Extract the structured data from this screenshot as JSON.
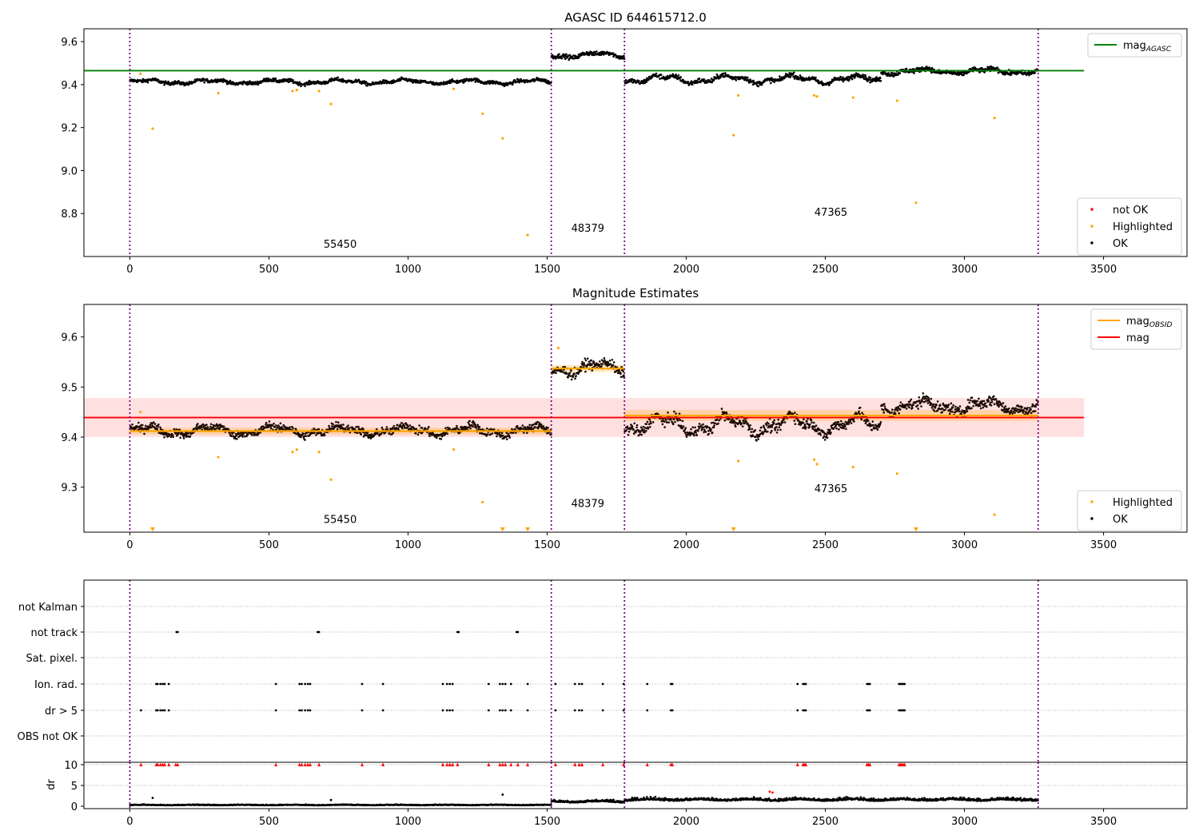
{
  "chart_data": [
    {
      "type": "scatter",
      "title": "AGASC ID 644615712.0",
      "xlim": [
        -165,
        3800
      ],
      "ylim": [
        8.6,
        9.66
      ],
      "xticks": [
        0,
        500,
        1000,
        1500,
        2000,
        2500,
        3000,
        3500
      ],
      "xtick_labels": [
        "0",
        "500",
        "1000",
        "1500",
        "2000",
        "2500",
        "3000",
        "3500"
      ],
      "yticks": [
        8.8,
        9.0,
        9.2,
        9.4,
        9.6
      ],
      "ytick_labels": [
        "8.8",
        "9.0",
        "9.2",
        "9.4",
        "9.6"
      ],
      "obs_boundaries": [
        0,
        1515,
        1778,
        3265
      ],
      "obs_labels": [
        {
          "text": "55450",
          "x": 756,
          "y": 8.64
        },
        {
          "text": "48379",
          "x": 1646,
          "y": 8.715
        },
        {
          "text": "47365",
          "x": 2520,
          "y": 8.79
        }
      ],
      "reference_line": {
        "name": "mag_AGASC",
        "y": 9.465,
        "x_range": [
          -165,
          3430
        ],
        "color": "#008000"
      },
      "segments": [
        {
          "x0": 0,
          "x1": 1515,
          "mean": 9.413,
          "amp": 0.008,
          "noise": 0.008
        },
        {
          "x0": 1515,
          "x1": 1778,
          "mean": 9.538,
          "amp": 0.01,
          "noise": 0.01
        },
        {
          "x0": 1778,
          "x1": 2700,
          "mean": 9.425,
          "amp": 0.015,
          "noise": 0.011
        },
        {
          "x0": 2700,
          "x1": 3265,
          "mean": 9.462,
          "amp": 0.01,
          "noise": 0.011
        }
      ],
      "highlighted_points": {
        "x": [
          38,
          82,
          318,
          585,
          600,
          680,
          723,
          1164,
          1268,
          1340,
          1430,
          2187,
          2170,
          2460,
          2470,
          2600,
          2758,
          2826,
          3108
        ],
        "y": [
          9.45,
          9.195,
          9.36,
          9.37,
          9.375,
          9.37,
          9.31,
          9.38,
          9.265,
          9.15,
          8.7,
          9.35,
          9.165,
          9.35,
          9.345,
          9.34,
          9.325,
          8.85,
          9.245
        ]
      },
      "legend": {
        "top_right": [
          {
            "label": "mag",
            "sub": "AGASC",
            "color": "#008000"
          }
        ],
        "bottom_right": [
          {
            "label": "not OK",
            "color": "#ff0000"
          },
          {
            "label": "Highlighted",
            "color": "#ffa500"
          },
          {
            "label": "OK",
            "color": "#000000"
          }
        ]
      }
    },
    {
      "type": "scatter",
      "title": "Magnitude Estimates",
      "xlim": [
        -165,
        3800
      ],
      "ylim": [
        9.21,
        9.665
      ],
      "xticks": [
        0,
        500,
        1000,
        1500,
        2000,
        2500,
        3000,
        3500
      ],
      "xtick_labels": [
        "0",
        "500",
        "1000",
        "1500",
        "2000",
        "2500",
        "3000",
        "3500"
      ],
      "yticks": [
        9.3,
        9.4,
        9.5,
        9.6
      ],
      "ytick_labels": [
        "9.3",
        "9.4",
        "9.5",
        "9.6"
      ],
      "obs_boundaries": [
        0,
        1515,
        1778,
        3265
      ],
      "obs_labels": [
        {
          "text": "55450",
          "x": 756,
          "y": 9.228
        },
        {
          "text": "48379",
          "x": 1646,
          "y": 9.26
        },
        {
          "text": "47365",
          "x": 2520,
          "y": 9.29
        }
      ],
      "mag_line": {
        "name": "mag",
        "y": 9.439,
        "band": [
          9.4,
          9.478
        ],
        "x_range": [
          -165,
          3430
        ],
        "color": "#ff0000"
      },
      "obsid_means": [
        {
          "x0": 0,
          "x1": 1515,
          "y": 9.412,
          "band": [
            9.405,
            9.419
          ]
        },
        {
          "x0": 1515,
          "x1": 1778,
          "y": 9.537,
          "band": [
            9.53,
            9.544
          ]
        },
        {
          "x0": 1778,
          "x1": 3265,
          "y": 9.443,
          "band": [
            9.432,
            9.454
          ]
        }
      ],
      "highlighted_points": {
        "x": [
          38,
          318,
          585,
          600,
          680,
          723,
          1164,
          1268,
          2187,
          2460,
          2470,
          2600,
          2758,
          3108,
          1540
        ],
        "y": [
          9.45,
          9.36,
          9.37,
          9.375,
          9.37,
          9.315,
          9.375,
          9.27,
          9.352,
          9.355,
          9.346,
          9.34,
          9.327,
          9.245,
          9.578
        ]
      },
      "below_range_markers": [
        82,
        1340,
        1430,
        2170,
        2826
      ],
      "legend": {
        "top_right": [
          {
            "label": "mag",
            "sub": "OBSID",
            "color": "#ffa500"
          },
          {
            "label": "mag",
            "sub": "",
            "color": "#ff0000"
          }
        ],
        "bottom_right": [
          {
            "label": "Highlighted",
            "color": "#ffa500"
          },
          {
            "label": "OK",
            "color": "#000000"
          }
        ]
      }
    },
    {
      "type": "scatter",
      "title": "",
      "xlim": [
        -165,
        3800
      ],
      "xticks": [
        0,
        500,
        1000,
        1500,
        2000,
        2500,
        3000,
        3500
      ],
      "xtick_labels": [
        "0",
        "500",
        "1000",
        "1500",
        "2000",
        "2500",
        "3000",
        "3500"
      ],
      "flag_rows": [
        "not Kalman",
        "not track",
        "Sat. pixel.",
        "Ion. rad.",
        "dr > 5",
        "OBS not OK"
      ],
      "obs_boundaries": [
        0,
        1515,
        1778,
        3265
      ],
      "flag_points": {
        "not track": [
          168,
          172,
          675,
          680,
          1178,
          1182,
          1390,
          1395
        ],
        "Ion. rad.": [
          95,
          100,
          110,
          118,
          125,
          140,
          525,
          610,
          618,
          630,
          640,
          648,
          835,
          910,
          1125,
          1140,
          1150,
          1160,
          1290,
          1330,
          1340,
          1350,
          1370,
          1430,
          1530,
          1600,
          1615,
          1625,
          1700,
          1775,
          1860,
          1945,
          1950,
          2400,
          2420,
          2425,
          2430,
          2650,
          2655,
          2660,
          2765,
          2770,
          2775,
          2780,
          2785
        ],
        "dr > 5": [
          40,
          95,
          100,
          110,
          118,
          125,
          140,
          525,
          610,
          618,
          630,
          640,
          648,
          835,
          910,
          1125,
          1140,
          1150,
          1160,
          1290,
          1330,
          1340,
          1350,
          1370,
          1430,
          1530,
          1600,
          1615,
          1625,
          1700,
          1775,
          1860,
          1945,
          1950,
          2400,
          2420,
          2425,
          2430,
          2650,
          2655,
          2660,
          2765,
          2770,
          2775,
          2780,
          2785
        ]
      }
    },
    {
      "type": "scatter",
      "ylabel": "dr",
      "xlim": [
        -165,
        3800
      ],
      "ylim": [
        0,
        10
      ],
      "xticks": [
        0,
        500,
        1000,
        1500,
        2000,
        2500,
        3000,
        3500
      ],
      "xtick_labels": [
        "0",
        "500",
        "1000",
        "1500",
        "2000",
        "2500",
        "3000",
        "3500"
      ],
      "yticks": [
        0,
        5,
        10
      ],
      "ytick_labels": [
        "0",
        "5",
        "10"
      ],
      "obs_boundaries": [
        0,
        1515,
        1778,
        3265
      ],
      "dr_segments": [
        {
          "x0": 0,
          "x1": 1515,
          "base": 0.25,
          "noise": 0.15
        },
        {
          "x0": 1515,
          "x1": 1778,
          "base": 1.0,
          "noise": 0.45
        },
        {
          "x0": 1778,
          "x1": 3265,
          "base": 1.4,
          "noise": 0.55
        }
      ],
      "dr_outliers": {
        "x": [
          82,
          723,
          1340,
          2300,
          2310
        ],
        "y": [
          2.0,
          1.5,
          2.8,
          3.5,
          3.3
        ]
      },
      "red_marker_x": [
        40,
        95,
        100,
        110,
        118,
        125,
        140,
        165,
        172,
        525,
        610,
        618,
        630,
        640,
        648,
        680,
        835,
        910,
        1125,
        1140,
        1150,
        1160,
        1178,
        1290,
        1330,
        1340,
        1350,
        1370,
        1395,
        1430,
        1530,
        1600,
        1615,
        1625,
        1700,
        1775,
        1860,
        1945,
        1950,
        2400,
        2420,
        2425,
        2430,
        2650,
        2655,
        2660,
        2765,
        2770,
        2775,
        2780,
        2785
      ]
    }
  ]
}
